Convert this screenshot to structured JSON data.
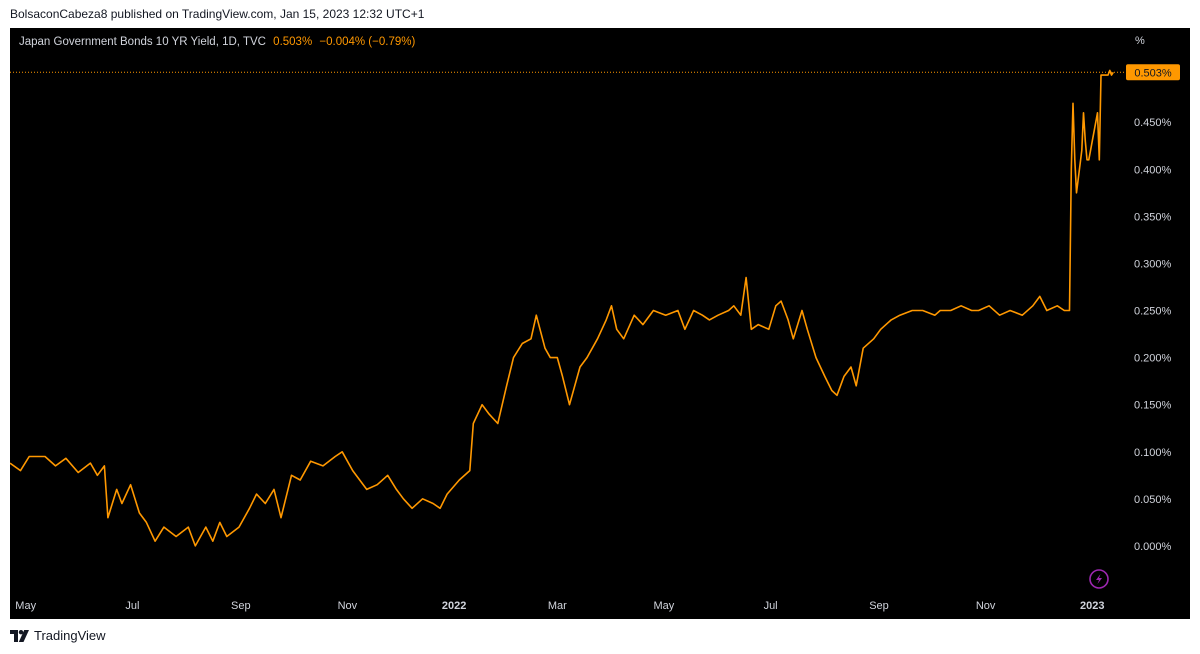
{
  "header": {
    "published": "BolsaconCabeza8 published on TradingView.com, Jan 15, 2023 12:32 UTC+1"
  },
  "legend": {
    "symbol": "Japan Government Bonds 10 YR Yield, 1D, TVC",
    "last": "0.503%",
    "change": "−0.004% (−0.79%)"
  },
  "axis": {
    "unit_label": "%",
    "price_badge": "0.503%"
  },
  "footer": {
    "brand": "TradingView"
  },
  "colors": {
    "line": "#ff9800",
    "background": "#000000",
    "axis_text": "#d1d4dc",
    "badge_text": "#131722",
    "flash_icon": "#9c27b0"
  },
  "chart_data": {
    "type": "line",
    "title": "Japan Government Bonds 10 YR Yield, 1D, TVC",
    "yunit": "%",
    "ylim": [
      -0.05,
      0.55
    ],
    "xlim": [
      "2021-04-22",
      "2023-01-18"
    ],
    "y_ticks": [
      0.0,
      0.05,
      0.1,
      0.15,
      0.2,
      0.25,
      0.3,
      0.35,
      0.4,
      0.45
    ],
    "y_tick_labels": [
      "0.000%",
      "0.050%",
      "0.100%",
      "0.150%",
      "0.200%",
      "0.250%",
      "0.300%",
      "0.350%",
      "0.400%",
      "0.450%"
    ],
    "x_ticks": [
      {
        "date": "2021-05-01",
        "label": "May"
      },
      {
        "date": "2021-07-01",
        "label": "Jul"
      },
      {
        "date": "2021-09-01",
        "label": "Sep"
      },
      {
        "date": "2021-11-01",
        "label": "Nov"
      },
      {
        "date": "2022-01-01",
        "label": "2022"
      },
      {
        "date": "2022-03-01",
        "label": "Mar"
      },
      {
        "date": "2022-05-01",
        "label": "May"
      },
      {
        "date": "2022-07-01",
        "label": "Jul"
      },
      {
        "date": "2022-09-01",
        "label": "Sep"
      },
      {
        "date": "2022-11-01",
        "label": "Nov"
      },
      {
        "date": "2023-01-01",
        "label": "2023"
      }
    ],
    "last_value": 0.503,
    "grid": false,
    "series": [
      {
        "points": [
          [
            "2021-04-22",
            0.088
          ],
          [
            "2021-04-28",
            0.08
          ],
          [
            "2021-05-03",
            0.095
          ],
          [
            "2021-05-12",
            0.095
          ],
          [
            "2021-05-18",
            0.085
          ],
          [
            "2021-05-24",
            0.093
          ],
          [
            "2021-05-31",
            0.078
          ],
          [
            "2021-06-07",
            0.088
          ],
          [
            "2021-06-11",
            0.075
          ],
          [
            "2021-06-15",
            0.085
          ],
          [
            "2021-06-17",
            0.03
          ],
          [
            "2021-06-22",
            0.06
          ],
          [
            "2021-06-25",
            0.045
          ],
          [
            "2021-06-30",
            0.065
          ],
          [
            "2021-07-05",
            0.035
          ],
          [
            "2021-07-09",
            0.025
          ],
          [
            "2021-07-14",
            0.005
          ],
          [
            "2021-07-19",
            0.02
          ],
          [
            "2021-07-26",
            0.01
          ],
          [
            "2021-08-02",
            0.02
          ],
          [
            "2021-08-06",
            0.0
          ],
          [
            "2021-08-12",
            0.02
          ],
          [
            "2021-08-16",
            0.005
          ],
          [
            "2021-08-20",
            0.025
          ],
          [
            "2021-08-24",
            0.01
          ],
          [
            "2021-08-31",
            0.02
          ],
          [
            "2021-09-06",
            0.04
          ],
          [
            "2021-09-10",
            0.055
          ],
          [
            "2021-09-15",
            0.045
          ],
          [
            "2021-09-20",
            0.06
          ],
          [
            "2021-09-24",
            0.03
          ],
          [
            "2021-09-30",
            0.075
          ],
          [
            "2021-10-05",
            0.07
          ],
          [
            "2021-10-11",
            0.09
          ],
          [
            "2021-10-18",
            0.085
          ],
          [
            "2021-10-25",
            0.095
          ],
          [
            "2021-10-29",
            0.1
          ],
          [
            "2021-11-04",
            0.08
          ],
          [
            "2021-11-08",
            0.07
          ],
          [
            "2021-11-12",
            0.06
          ],
          [
            "2021-11-18",
            0.065
          ],
          [
            "2021-11-24",
            0.075
          ],
          [
            "2021-11-29",
            0.06
          ],
          [
            "2021-12-03",
            0.05
          ],
          [
            "2021-12-08",
            0.04
          ],
          [
            "2021-12-14",
            0.05
          ],
          [
            "2021-12-20",
            0.045
          ],
          [
            "2021-12-24",
            0.04
          ],
          [
            "2021-12-28",
            0.055
          ],
          [
            "2022-01-04",
            0.07
          ],
          [
            "2022-01-10",
            0.08
          ],
          [
            "2022-01-12",
            0.13
          ],
          [
            "2022-01-17",
            0.15
          ],
          [
            "2022-01-21",
            0.14
          ],
          [
            "2022-01-26",
            0.13
          ],
          [
            "2022-01-31",
            0.17
          ],
          [
            "2022-02-04",
            0.2
          ],
          [
            "2022-02-09",
            0.215
          ],
          [
            "2022-02-14",
            0.22
          ],
          [
            "2022-02-17",
            0.245
          ],
          [
            "2022-02-22",
            0.21
          ],
          [
            "2022-02-25",
            0.2
          ],
          [
            "2022-03-01",
            0.2
          ],
          [
            "2022-03-04",
            0.18
          ],
          [
            "2022-03-08",
            0.15
          ],
          [
            "2022-03-14",
            0.19
          ],
          [
            "2022-03-18",
            0.2
          ],
          [
            "2022-03-24",
            0.22
          ],
          [
            "2022-03-29",
            0.24
          ],
          [
            "2022-04-01",
            0.255
          ],
          [
            "2022-04-04",
            0.23
          ],
          [
            "2022-04-08",
            0.22
          ],
          [
            "2022-04-14",
            0.245
          ],
          [
            "2022-04-19",
            0.235
          ],
          [
            "2022-04-25",
            0.25
          ],
          [
            "2022-05-02",
            0.245
          ],
          [
            "2022-05-09",
            0.25
          ],
          [
            "2022-05-13",
            0.23
          ],
          [
            "2022-05-18",
            0.25
          ],
          [
            "2022-05-23",
            0.245
          ],
          [
            "2022-05-27",
            0.24
          ],
          [
            "2022-06-01",
            0.245
          ],
          [
            "2022-06-07",
            0.25
          ],
          [
            "2022-06-10",
            0.255
          ],
          [
            "2022-06-14",
            0.245
          ],
          [
            "2022-06-17",
            0.285
          ],
          [
            "2022-06-20",
            0.23
          ],
          [
            "2022-06-24",
            0.235
          ],
          [
            "2022-06-30",
            0.23
          ],
          [
            "2022-07-04",
            0.255
          ],
          [
            "2022-07-07",
            0.26
          ],
          [
            "2022-07-11",
            0.24
          ],
          [
            "2022-07-14",
            0.22
          ],
          [
            "2022-07-19",
            0.25
          ],
          [
            "2022-07-22",
            0.23
          ],
          [
            "2022-07-27",
            0.2
          ],
          [
            "2022-08-01",
            0.18
          ],
          [
            "2022-08-05",
            0.165
          ],
          [
            "2022-08-08",
            0.16
          ],
          [
            "2022-08-12",
            0.18
          ],
          [
            "2022-08-16",
            0.19
          ],
          [
            "2022-08-19",
            0.17
          ],
          [
            "2022-08-23",
            0.21
          ],
          [
            "2022-08-29",
            0.22
          ],
          [
            "2022-09-02",
            0.23
          ],
          [
            "2022-09-08",
            0.24
          ],
          [
            "2022-09-13",
            0.245
          ],
          [
            "2022-09-20",
            0.25
          ],
          [
            "2022-09-26",
            0.25
          ],
          [
            "2022-10-03",
            0.245
          ],
          [
            "2022-10-06",
            0.25
          ],
          [
            "2022-10-12",
            0.25
          ],
          [
            "2022-10-18",
            0.255
          ],
          [
            "2022-10-24",
            0.25
          ],
          [
            "2022-10-28",
            0.25
          ],
          [
            "2022-11-03",
            0.255
          ],
          [
            "2022-11-09",
            0.245
          ],
          [
            "2022-11-15",
            0.25
          ],
          [
            "2022-11-22",
            0.245
          ],
          [
            "2022-11-28",
            0.255
          ],
          [
            "2022-12-02",
            0.265
          ],
          [
            "2022-12-06",
            0.25
          ],
          [
            "2022-12-12",
            0.255
          ],
          [
            "2022-12-16",
            0.25
          ],
          [
            "2022-12-19",
            0.25
          ],
          [
            "2022-12-20",
            0.4
          ],
          [
            "2022-12-21",
            0.47
          ],
          [
            "2022-12-22",
            0.41
          ],
          [
            "2022-12-23",
            0.375
          ],
          [
            "2022-12-26",
            0.42
          ],
          [
            "2022-12-27",
            0.46
          ],
          [
            "2022-12-28",
            0.43
          ],
          [
            "2022-12-29",
            0.41
          ],
          [
            "2022-12-30",
            0.41
          ],
          [
            "2023-01-04",
            0.46
          ],
          [
            "2023-01-05",
            0.41
          ],
          [
            "2023-01-06",
            0.5
          ],
          [
            "2023-01-10",
            0.5
          ],
          [
            "2023-01-11",
            0.505
          ],
          [
            "2023-01-12",
            0.5
          ],
          [
            "2023-01-13",
            0.503
          ]
        ]
      }
    ]
  }
}
